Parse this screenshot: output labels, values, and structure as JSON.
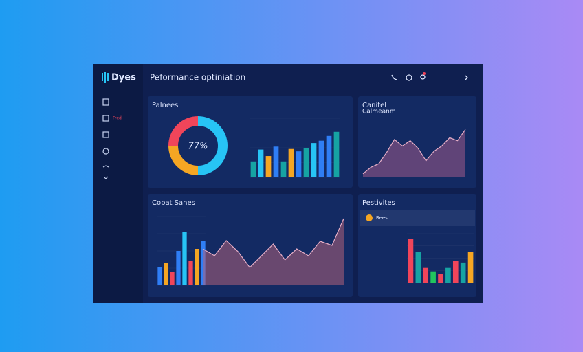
{
  "header": {
    "logo": "Dyes",
    "title": "Peformance optiniation"
  },
  "sidebar": {
    "label": "Fred"
  },
  "panels": [
    {
      "title": "Palnees",
      "charts": [
        {
          "type": "donut",
          "label": "77%",
          "values": [
            25,
            50,
            25
          ],
          "colors": [
            "#f0455a",
            "#27c4f5",
            "#f5a623"
          ]
        },
        {
          "type": "bar",
          "ylim": [
            0,
            100
          ],
          "values": [
            27,
            47,
            36,
            52,
            27,
            48,
            44,
            50,
            58,
            62,
            70,
            77
          ],
          "colors": [
            "#16a3a3",
            "#27c4f5",
            "#f5a623",
            "#2f7ef5",
            "#16a3a3",
            "#f5a623",
            "#2f7ef5",
            "#16a3a3",
            "#27c4f5",
            "#2f7ef5",
            "#2f7ef5",
            "#16a3a3"
          ]
        }
      ]
    },
    {
      "title": "Canitel",
      "subtitle": "Calmeanm",
      "charts": [
        {
          "type": "area",
          "ylim": [
            0,
            100
          ],
          "values": [
            6,
            17,
            23,
            42,
            64,
            53,
            62,
            49,
            28,
            44,
            53,
            67,
            62,
            81
          ],
          "color": "#a05a8a"
        }
      ]
    },
    {
      "title": "Copat Sanes",
      "charts": [
        {
          "type": "bar",
          "ylim": [
            0,
            100
          ],
          "values": [
            27,
            33,
            20,
            50,
            78,
            35,
            53,
            65
          ],
          "colors": [
            "#2f7ef5",
            "#f5a623",
            "#f0455a",
            "#2f7ef5",
            "#27c4f5",
            "#f0455a",
            "#f5a623",
            "#2f7ef5"
          ]
        },
        {
          "type": "area",
          "ylim": [
            0,
            100
          ],
          "values": [
            53,
            43,
            65,
            49,
            26,
            43,
            60,
            37,
            53,
            43,
            64,
            58,
            97
          ],
          "color": "#b0607a"
        }
      ]
    },
    {
      "title": "Pestivites",
      "row": "Rees",
      "charts": [
        {
          "type": "bar",
          "ylim": [
            0,
            100
          ],
          "values": [
            89,
            63,
            30,
            23,
            18,
            30,
            44,
            41,
            62
          ],
          "colors": [
            "#f0455a",
            "#16a3a3",
            "#f0455a",
            "#22c55e",
            "#f0455a",
            "#16a3a3",
            "#f0455a",
            "#16a3a3",
            "#f5a623"
          ]
        }
      ]
    }
  ]
}
